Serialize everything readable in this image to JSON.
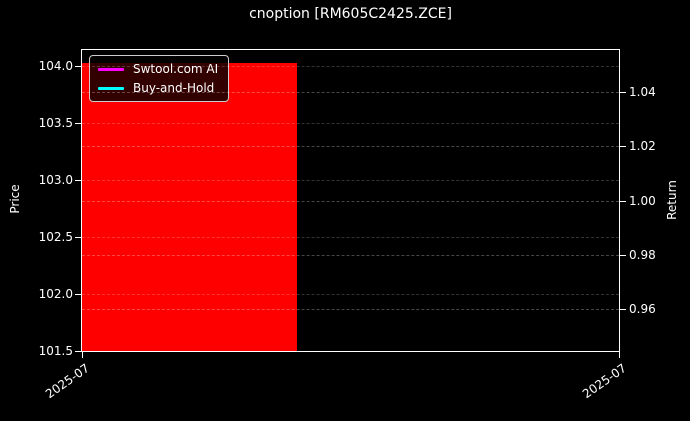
{
  "chart_data": {
    "type": "area",
    "title": "cnoption [RM605C2425.ZCE]",
    "left_axis": {
      "label": "Price",
      "tick_values": [
        104.0,
        103.5,
        103.0,
        102.5,
        102.0,
        101.5
      ],
      "tick_labels": [
        "104.0",
        "103.5",
        "103.0",
        "102.5",
        "102.0",
        "101.5"
      ],
      "min": 101.496,
      "max": 104.138
    },
    "right_axis": {
      "label": "Return",
      "tick_values": [
        1.04,
        1.02,
        1.0,
        0.98,
        0.96
      ],
      "tick_labels": [
        "1.04",
        "1.02",
        "1.00",
        "0.98",
        "0.96"
      ],
      "min": 0.9447,
      "max": 1.0553
    },
    "x_axis": {
      "tick_labels": [
        "2025-07",
        "2025-07"
      ],
      "tick_positions_frac": [
        0.0,
        1.0
      ],
      "label_rotation_deg": 35
    },
    "area": {
      "name": "price-fill",
      "color": "#ff0000",
      "value": 104.0,
      "x_start_frac": 0.0,
      "x_end_frac": 0.4,
      "fills_to": "bottom"
    },
    "legend": {
      "position": "upper-left",
      "entries": [
        {
          "label": "Swtool.com AI",
          "color": "#ff00ff"
        },
        {
          "label": "Buy-and-Hold",
          "color": "#00ffff"
        }
      ]
    },
    "grid": {
      "visible": true,
      "style": "dashed"
    },
    "colors": {
      "background": "#000000",
      "text": "#ffffff",
      "spine": "#ffffff",
      "area_fill": "#ff0000",
      "series_ai": "#ff00ff",
      "series_buy_and_hold": "#00ffff"
    }
  }
}
